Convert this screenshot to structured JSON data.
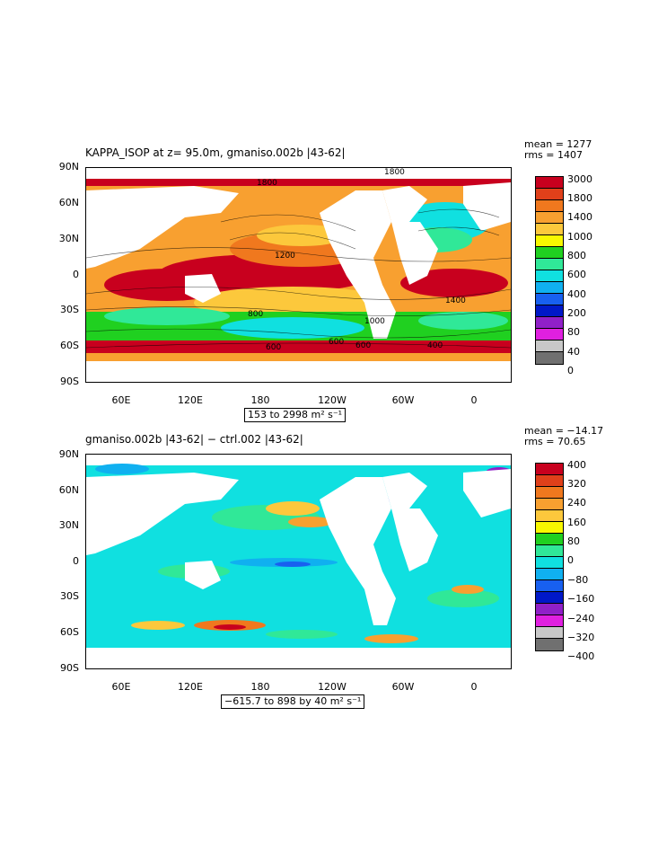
{
  "top": {
    "title": "KAPPA_ISOP at z=  95.0m, gmaniso.002b  |43-62|",
    "stats_mean": "mean = 1277",
    "stats_rms": "rms = 1407",
    "range": "153 to 2998 m² s⁻¹",
    "colorbar_labels": [
      "3000",
      "1800",
      "1400",
      "1000",
      "800",
      "600",
      "400",
      "200",
      "80",
      "40",
      "0"
    ],
    "colorbar_colors": [
      "#c8001e",
      "#e0401a",
      "#f0781e",
      "#f8a030",
      "#fcc83c",
      "#f8f800",
      "#20d020",
      "#30e898",
      "#10e0e0",
      "#10b0f0",
      "#1860f0",
      "#0018c8",
      "#9020c8",
      "#e020e0",
      "#c8c8c8",
      "#707070"
    ],
    "contour_labels": [
      {
        "text": "1800"
      },
      {
        "text": "1800"
      },
      {
        "text": "1200"
      },
      {
        "text": "800"
      },
      {
        "text": "1000"
      },
      {
        "text": "600"
      },
      {
        "text": "600"
      },
      {
        "text": "600"
      },
      {
        "text": "1400"
      },
      {
        "text": "400"
      }
    ]
  },
  "bottom": {
    "title": "gmaniso.002b  |43-62|  − ctrl.002  |43-62|",
    "stats_mean": "mean = −14.17",
    "stats_rms": "rms = 70.65",
    "range": "−615.7 to 898 by 40 m² s⁻¹",
    "colorbar_labels": [
      "400",
      "320",
      "240",
      "160",
      "80",
      "0",
      "−80",
      "−160",
      "−240",
      "−320",
      "−400"
    ],
    "colorbar_colors": [
      "#c8001e",
      "#e0401a",
      "#f0781e",
      "#f8a030",
      "#fcc83c",
      "#f8f800",
      "#20d020",
      "#30e898",
      "#10e0e0",
      "#10b0f0",
      "#1860f0",
      "#0018c8",
      "#9020c8",
      "#e020e0",
      "#c8c8c8",
      "#707070"
    ]
  },
  "axes": {
    "lat_labels": [
      "90N",
      "60N",
      "30N",
      "0",
      "30S",
      "60S",
      "90S"
    ],
    "lon_labels": [
      "60E",
      "120E",
      "180",
      "120W",
      "60W",
      "0"
    ]
  },
  "colors": {
    "ocean_high": "#c8001e",
    "ocean_mid": "#f8a030",
    "ocean_low": "#20d020",
    "diff_base": "#10e0e0",
    "land": "#ffffff"
  }
}
